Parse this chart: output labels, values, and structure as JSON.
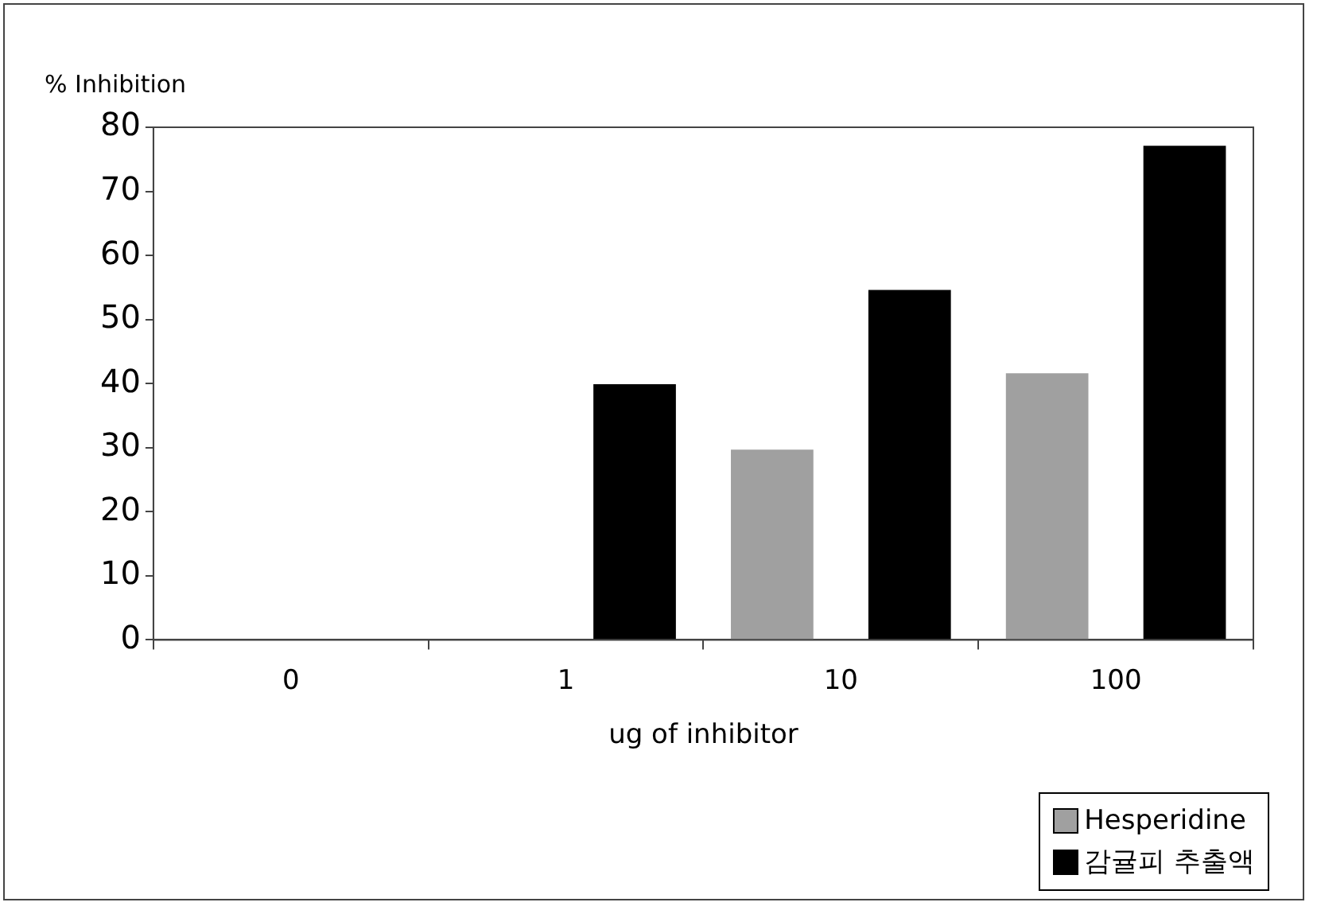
{
  "chart_data": {
    "type": "bar",
    "ylabel": "% Inhibition",
    "xlabel": "ug of inhibitor",
    "categories": [
      "0",
      "1",
      "10",
      "100"
    ],
    "series": [
      {
        "name": "Hesperidine",
        "color": "#a0a0a0",
        "values": [
          0,
          0,
          29.7,
          41.6
        ]
      },
      {
        "name": "감귤피 추출액",
        "color": "#000000",
        "values": [
          0,
          39.9,
          54.6,
          77.1
        ]
      }
    ],
    "ylim": [
      0,
      80
    ],
    "yticks": [
      0,
      10,
      20,
      30,
      40,
      50,
      60,
      70,
      80
    ],
    "grid": false,
    "legend": "bottom right"
  }
}
